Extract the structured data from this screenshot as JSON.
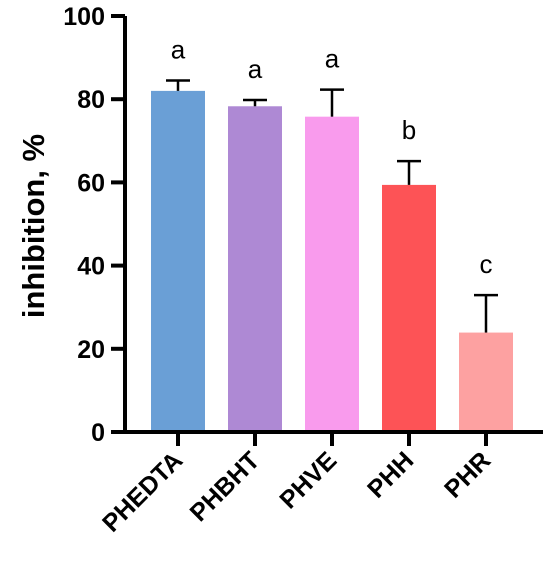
{
  "chart_data": {
    "type": "bar",
    "categories": [
      "PHEDTA",
      "PHBHT",
      "PHVE",
      "PHH",
      "PHR"
    ],
    "values": [
      82,
      78.3,
      75.8,
      59.4,
      23.9
    ],
    "errors": [
      2.5,
      1.5,
      6.5,
      5.7,
      9.0
    ],
    "significance": [
      "a",
      "a",
      "a",
      "b",
      "c"
    ],
    "colors": [
      "#6a9fd6",
      "#ae89d4",
      "#f99bed",
      "#fd5356",
      "#fda1a1"
    ],
    "title": "",
    "xlabel": "",
    "ylabel": "inhibition, %",
    "ylim": [
      0,
      100
    ],
    "yticks": [
      0,
      20,
      40,
      60,
      80,
      100
    ],
    "grid": false,
    "legend": "none"
  }
}
